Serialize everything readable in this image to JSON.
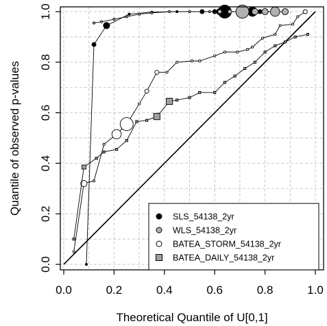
{
  "chart_data": {
    "type": "scatter",
    "xlabel": "Theoretical Quantile of U[0,1]",
    "ylabel": "Quantile of observed p-values",
    "xlim": [
      0.0,
      1.0
    ],
    "ylim": [
      0.0,
      1.0
    ],
    "x_ticks": [
      "0.0",
      "0.2",
      "0.4",
      "0.6",
      "0.8",
      "1.0"
    ],
    "y_ticks": [
      "0.0",
      "0.2",
      "0.4",
      "0.6",
      "0.8",
      "1.0"
    ],
    "grid": true,
    "legend_position": "bottom-right",
    "reference_line": "1:1",
    "series": [
      {
        "name": "SLS_54138_2yr",
        "fill": "#000000",
        "points": [
          [
            0.09,
            0.0
          ],
          [
            0.12,
            0.87
          ],
          [
            0.17,
            0.945
          ],
          [
            0.26,
            0.99
          ],
          [
            0.35,
            0.998
          ],
          [
            0.45,
            1.0
          ],
          [
            0.55,
            1.0
          ],
          [
            0.6,
            1.0
          ],
          [
            0.62,
            1.0
          ],
          [
            0.64,
            1.0
          ],
          [
            0.72,
            1.0
          ],
          [
            0.75,
            1.0
          ],
          [
            0.78,
            1.0
          ]
        ],
        "sizes": [
          1,
          2,
          3,
          1,
          1,
          1,
          2,
          2,
          3,
          5,
          3,
          4,
          2
        ]
      },
      {
        "name": "WLS_54138_2yr",
        "fill": "#b0b0b0",
        "points": [
          [
            0.12,
            0.955
          ],
          [
            0.15,
            0.96
          ],
          [
            0.2,
            0.97
          ],
          [
            0.25,
            0.98
          ],
          [
            0.3,
            0.99
          ],
          [
            0.35,
            0.995
          ],
          [
            0.42,
            1.0
          ],
          [
            0.5,
            1.0
          ],
          [
            0.58,
            1.0
          ],
          [
            0.62,
            1.0
          ],
          [
            0.66,
            1.0
          ],
          [
            0.7,
            1.0
          ],
          [
            0.71,
            1.0
          ],
          [
            0.76,
            1.0
          ],
          [
            0.8,
            1.0
          ],
          [
            0.84,
            1.0
          ],
          [
            0.88,
            1.0
          ]
        ],
        "sizes": [
          1,
          1,
          1,
          1,
          1,
          1,
          1,
          1,
          1,
          2,
          2,
          3,
          5,
          3,
          3,
          4,
          3
        ]
      },
      {
        "name": "BATEA_STORM_54138_2yr",
        "fill": "#ffffff",
        "points": [
          [
            0.04,
            0.05
          ],
          [
            0.08,
            0.32
          ],
          [
            0.12,
            0.33
          ],
          [
            0.16,
            0.475
          ],
          [
            0.21,
            0.515
          ],
          [
            0.25,
            0.555
          ],
          [
            0.3,
            0.635
          ],
          [
            0.33,
            0.685
          ],
          [
            0.37,
            0.76
          ],
          [
            0.41,
            0.76
          ],
          [
            0.45,
            0.8
          ],
          [
            0.51,
            0.805
          ],
          [
            0.54,
            0.805
          ],
          [
            0.6,
            0.825
          ],
          [
            0.64,
            0.84
          ],
          [
            0.69,
            0.84
          ],
          [
            0.73,
            0.85
          ],
          [
            0.75,
            0.86
          ],
          [
            0.79,
            0.895
          ],
          [
            0.84,
            0.91
          ],
          [
            0.86,
            0.945
          ],
          [
            0.91,
            0.95
          ],
          [
            0.93,
            0.98
          ],
          [
            0.96,
            1.0
          ]
        ],
        "sizes": [
          1,
          3,
          1,
          1,
          4,
          5,
          1,
          2,
          2,
          1,
          1,
          1,
          1,
          1,
          1,
          1,
          1,
          1,
          1,
          1,
          1,
          1,
          1,
          2
        ]
      },
      {
        "name": "BATEA_DAILY_54138_2yr",
        "fill": "#a0a0a0",
        "points": [
          [
            0.04,
            0.1
          ],
          [
            0.08,
            0.385
          ],
          [
            0.13,
            0.42
          ],
          [
            0.16,
            0.445
          ],
          [
            0.21,
            0.455
          ],
          [
            0.25,
            0.49
          ],
          [
            0.29,
            0.565
          ],
          [
            0.33,
            0.57
          ],
          [
            0.37,
            0.585
          ],
          [
            0.42,
            0.645
          ],
          [
            0.45,
            0.65
          ],
          [
            0.5,
            0.66
          ],
          [
            0.54,
            0.68
          ],
          [
            0.6,
            0.68
          ],
          [
            0.64,
            0.72
          ],
          [
            0.68,
            0.745
          ],
          [
            0.72,
            0.775
          ],
          [
            0.76,
            0.8
          ],
          [
            0.8,
            0.84
          ],
          [
            0.84,
            0.865
          ],
          [
            0.88,
            0.88
          ],
          [
            0.92,
            0.9
          ],
          [
            0.97,
            0.91
          ]
        ],
        "sizes": [
          1,
          2,
          1,
          1,
          1,
          1,
          1,
          1,
          3,
          3,
          1,
          1,
          1,
          1,
          1,
          1,
          1,
          1,
          1,
          1,
          1,
          1,
          1
        ]
      }
    ]
  },
  "legend": {
    "items": [
      {
        "label": "SLS_54138_2yr",
        "marker": "circle",
        "fill": "#000000"
      },
      {
        "label": "WLS_54138_2yr",
        "marker": "circle",
        "fill": "#b0b0b0"
      },
      {
        "label": "BATEA_STORM_54138_2yr",
        "marker": "circle",
        "fill": "#ffffff"
      },
      {
        "label": "BATEA_DAILY_54138_2yr",
        "marker": "square",
        "fill": "#a0a0a0"
      }
    ]
  }
}
